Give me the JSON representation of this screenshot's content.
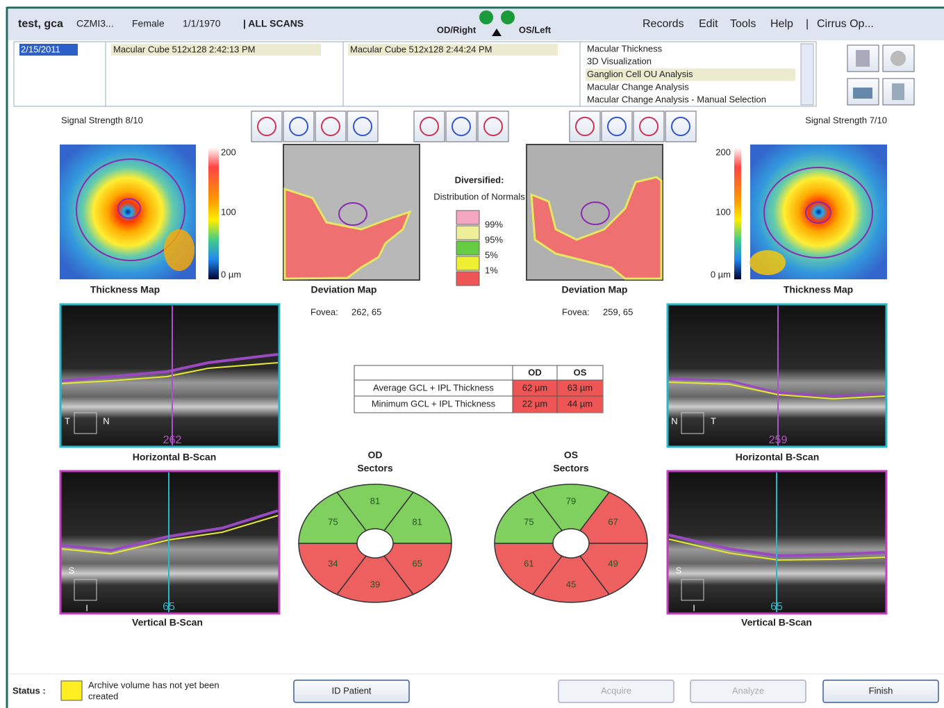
{
  "header": {
    "patient": "test, gca",
    "patient_id": "CZMI3...",
    "sex": "Female",
    "dob": "1/1/1970",
    "scans": "| ALL SCANS",
    "od": "OD/Right",
    "os": "OS/Left",
    "menu": [
      "Records",
      "Edit",
      "Tools",
      "Help",
      "|",
      "Cirrus Op..."
    ]
  },
  "scan_list": {
    "date": "2/15/2011",
    "scans": [
      "Macular Cube 512x128    2:42:13 PM",
      "Macular Cube 512x128    2:44:24 PM"
    ],
    "analyses": [
      "Macular Thickness",
      "3D Visualization",
      "Ganglion Cell OU Analysis",
      "Macular Change Analysis",
      "Macular Change Analysis - Manual Selection"
    ],
    "selected_analysis": 2
  },
  "left": {
    "signal": "Signal Strength  8/10",
    "scale": [
      "200",
      "100",
      "0 µm"
    ],
    "thickness_map": "Thickness Map",
    "deviation_map": "Deviation Map",
    "fovea_label": "Fovea:",
    "fovea": "262, 65",
    "hscan": {
      "t": "T",
      "n": "N",
      "position": "262",
      "title": "Horizontal B-Scan"
    },
    "vscan": {
      "s": "S",
      "i": "I",
      "position": "65",
      "title": "Vertical B-Scan"
    }
  },
  "right": {
    "signal": "Signal Strength  7/10",
    "scale": [
      "200",
      "100",
      "0 µm"
    ],
    "thickness_map": "Thickness Map",
    "deviation_map": "Deviation Map",
    "fovea_label": "Fovea:",
    "fovea": "259, 65",
    "hscan": {
      "t": "T",
      "n": "N",
      "position": "259",
      "title": "Horizontal B-Scan"
    },
    "vscan": {
      "s": "S",
      "i": "I",
      "position": "65",
      "title": "Vertical B-Scan"
    }
  },
  "legend": {
    "title": "Diversified:",
    "subtitle": "Distribution of Normals",
    "levels": [
      "99%",
      "95%",
      "5%",
      "1%"
    ],
    "colors": [
      "#f4a6c0",
      "#eeee99",
      "#66cc44",
      "#eeee33",
      "#ee5555"
    ]
  },
  "table": {
    "header": [
      "OD",
      "OS"
    ],
    "rows": [
      [
        "Average GCL + IPL Thickness",
        "62 µm",
        "63 µm"
      ],
      [
        "Minimum GCL + IPL Thickness",
        "22 µm",
        "44 µm"
      ]
    ]
  },
  "sectors": [
    {
      "title": "OD",
      "subtitle": "Sectors",
      "values": [
        81,
        81,
        65,
        39,
        34,
        75
      ],
      "colors": [
        "#80d060",
        "#80d060",
        "#ee6060",
        "#ee6060",
        "#ee6060",
        "#80d060"
      ]
    },
    {
      "title": "OS",
      "subtitle": "Sectors",
      "values": [
        79,
        67,
        49,
        45,
        61,
        75
      ],
      "colors": [
        "#80d060",
        "#ee6060",
        "#ee6060",
        "#ee6060",
        "#ee6060",
        "#80d060"
      ]
    }
  ],
  "footer": {
    "status_label": "Status :",
    "status": [
      "Archive volume has not yet been",
      "created"
    ],
    "buttons": [
      "ID Patient",
      "Acquire",
      "Analyze",
      "Finish"
    ]
  }
}
